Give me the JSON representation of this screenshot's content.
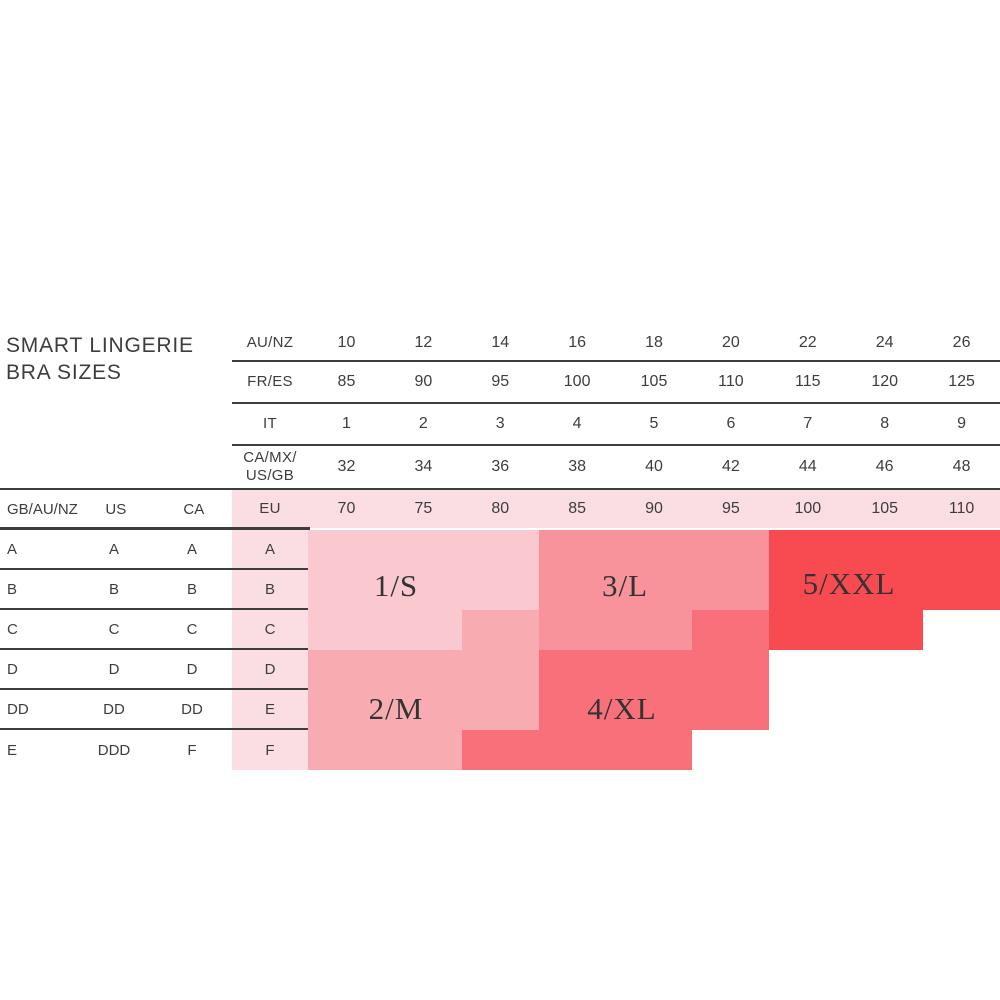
{
  "title": "SMART LINGERIE\nBRA SIZES",
  "colors": {
    "s": "#fac9cf",
    "m": "#f9abb2",
    "l": "#f9939b",
    "q": "#f8717a",
    "x": "#f74a51",
    "w": "transparent",
    "band_pink": "#fbdee4",
    "line": "#3d3d3d",
    "text": "#3d3d3d"
  },
  "chart_data": {
    "type": "table",
    "title": "SMART LINGERIE BRA SIZES",
    "band_rows": [
      {
        "label": "AU/NZ",
        "values": [
          "10",
          "12",
          "14",
          "16",
          "18",
          "20",
          "22",
          "24",
          "26"
        ]
      },
      {
        "label": "FR/ES",
        "values": [
          "85",
          "90",
          "95",
          "100",
          "105",
          "110",
          "115",
          "120",
          "125"
        ]
      },
      {
        "label": "IT",
        "values": [
          "1",
          "2",
          "3",
          "4",
          "5",
          "6",
          "7",
          "8",
          "9"
        ]
      },
      {
        "label": "CA/MX/\nUS/GB",
        "values": [
          "32",
          "34",
          "36",
          "38",
          "40",
          "42",
          "44",
          "46",
          "48"
        ]
      },
      {
        "label": "EU",
        "values": [
          "70",
          "75",
          "80",
          "85",
          "90",
          "95",
          "100",
          "105",
          "110"
        ]
      }
    ],
    "cup_header": [
      "GB/AU/NZ",
      "US",
      "CA"
    ],
    "cup_rows": [
      [
        "A",
        "A",
        "A",
        "A"
      ],
      [
        "B",
        "B",
        "B",
        "B"
      ],
      [
        "C",
        "C",
        "C",
        "C"
      ],
      [
        "D",
        "D",
        "D",
        "D"
      ],
      [
        "DD",
        "DD",
        "DD",
        "E"
      ],
      [
        "E",
        "DDD",
        "F",
        "F"
      ]
    ],
    "size_grid": {
      "eu_columns": [
        "70",
        "75",
        "80",
        "85",
        "90",
        "95",
        "100",
        "105",
        "110"
      ],
      "cup_rows": [
        "A",
        "B",
        "C",
        "D",
        "E",
        "F"
      ],
      "cells": [
        [
          "s",
          "s",
          "s",
          "l",
          "l",
          "l",
          "x",
          "x",
          "x"
        ],
        [
          "s",
          "s",
          "s",
          "l",
          "l",
          "l",
          "x",
          "x",
          "x"
        ],
        [
          "s",
          "s",
          "m",
          "l",
          "l",
          "q",
          "x",
          "x",
          "w"
        ],
        [
          "m",
          "m",
          "m",
          "q",
          "q",
          "q",
          "w",
          "w",
          "w"
        ],
        [
          "m",
          "m",
          "m",
          "q",
          "q",
          "q",
          "w",
          "w",
          "w"
        ],
        [
          "m",
          "m",
          "q",
          "q",
          "q",
          "w",
          "w",
          "w",
          "w"
        ]
      ],
      "legend": {
        "s": "1/S",
        "m": "2/M",
        "l": "3/L",
        "q": "4/XL",
        "x": "5/XXL",
        "w": "none"
      }
    },
    "regions": [
      {
        "id": "s",
        "label": "1/S",
        "color": "#fac9cf"
      },
      {
        "id": "m",
        "label": "2/M",
        "color": "#f9abb2"
      },
      {
        "id": "l",
        "label": "3/L",
        "color": "#f9939b"
      },
      {
        "id": "q",
        "label": "4/XL",
        "color": "#f8717a"
      },
      {
        "id": "x",
        "label": "5/XXL",
        "color": "#f74a51"
      }
    ]
  }
}
